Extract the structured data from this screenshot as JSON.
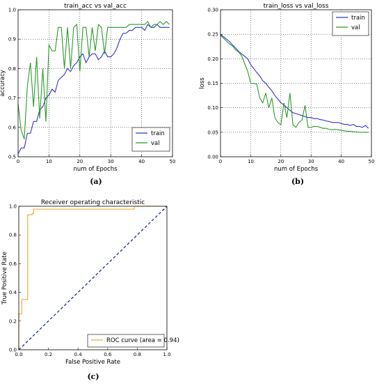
{
  "captions": {
    "a": "(a)",
    "b": "(b)",
    "c": "(c)"
  },
  "colors": {
    "train": "#3333cc",
    "val": "#2a9a2a",
    "train_loss": "#3333cc",
    "val_loss": "#2a9a2a",
    "roc": "#f5a623",
    "diag": "#1f2a8a"
  },
  "chart_data": [
    {
      "type": "line",
      "title": "train_acc vs val_acc",
      "xlabel": "num of Epochs",
      "ylabel": "accuracy",
      "xlim": [
        0,
        50
      ],
      "ylim": [
        0.5,
        1.0
      ],
      "xticks": [
        0,
        10,
        20,
        30,
        40,
        50
      ],
      "yticks": [
        0.5,
        0.6,
        0.7,
        0.8,
        0.9,
        1.0
      ],
      "grid": true,
      "legend": "bottom-right",
      "x": [
        0,
        1,
        2,
        3,
        4,
        5,
        6,
        7,
        8,
        9,
        10,
        11,
        12,
        13,
        14,
        15,
        16,
        17,
        18,
        19,
        20,
        21,
        22,
        23,
        24,
        25,
        26,
        27,
        28,
        29,
        30,
        31,
        32,
        33,
        34,
        35,
        36,
        37,
        38,
        39,
        40,
        41,
        42,
        43,
        44,
        45,
        46,
        47,
        48,
        49
      ],
      "series": [
        {
          "name": "train",
          "values": [
            0.51,
            0.53,
            0.53,
            0.58,
            0.58,
            0.62,
            0.62,
            0.66,
            0.67,
            0.7,
            0.71,
            0.73,
            0.72,
            0.76,
            0.77,
            0.78,
            0.8,
            0.79,
            0.81,
            0.82,
            0.84,
            0.85,
            0.82,
            0.84,
            0.85,
            0.85,
            0.83,
            0.84,
            0.86,
            0.84,
            0.84,
            0.85,
            0.87,
            0.9,
            0.92,
            0.92,
            0.93,
            0.93,
            0.94,
            0.94,
            0.94,
            0.93,
            0.95,
            0.94,
            0.94,
            0.95,
            0.94,
            0.94,
            0.94,
            0.94
          ]
        },
        {
          "name": "val",
          "values": [
            0.68,
            0.59,
            0.56,
            0.74,
            0.82,
            0.67,
            0.84,
            0.63,
            0.8,
            0.62,
            0.88,
            0.86,
            0.86,
            0.94,
            0.94,
            0.8,
            0.94,
            0.8,
            0.94,
            0.95,
            0.79,
            0.94,
            0.94,
            0.84,
            0.94,
            0.86,
            0.95,
            0.94,
            0.85,
            0.94,
            0.94,
            0.94,
            0.94,
            0.94,
            0.94,
            0.94,
            0.95,
            0.95,
            0.95,
            0.95,
            0.95,
            0.95,
            0.96,
            0.94,
            0.95,
            0.95,
            0.96,
            0.95,
            0.96,
            0.95
          ]
        }
      ]
    },
    {
      "type": "line",
      "title": "train_loss vs val_loss",
      "xlabel": "num of Epochs",
      "ylabel": "loss",
      "xlim": [
        0,
        50
      ],
      "ylim": [
        0.0,
        0.3
      ],
      "xticks": [
        0,
        10,
        20,
        30,
        40,
        50
      ],
      "yticks": [
        0.0,
        0.05,
        0.1,
        0.15,
        0.2,
        0.25,
        0.3
      ],
      "grid": true,
      "legend": "top-right",
      "x": [
        0,
        1,
        2,
        3,
        4,
        5,
        6,
        7,
        8,
        9,
        10,
        11,
        12,
        13,
        14,
        15,
        16,
        17,
        18,
        19,
        20,
        21,
        22,
        23,
        24,
        25,
        26,
        27,
        28,
        29,
        30,
        31,
        32,
        33,
        34,
        35,
        36,
        37,
        38,
        39,
        40,
        41,
        42,
        43,
        44,
        45,
        46,
        47,
        48,
        49
      ],
      "series": [
        {
          "name": "train",
          "values": [
            0.25,
            0.245,
            0.24,
            0.235,
            0.228,
            0.222,
            0.215,
            0.21,
            0.205,
            0.2,
            0.188,
            0.18,
            0.172,
            0.165,
            0.155,
            0.15,
            0.142,
            0.135,
            0.125,
            0.118,
            0.11,
            0.106,
            0.1,
            0.095,
            0.09,
            0.088,
            0.086,
            0.084,
            0.082,
            0.08,
            0.08,
            0.078,
            0.078,
            0.076,
            0.075,
            0.073,
            0.072,
            0.07,
            0.07,
            0.07,
            0.068,
            0.066,
            0.066,
            0.064,
            0.066,
            0.062,
            0.062,
            0.06,
            0.064,
            0.058
          ]
        },
        {
          "name": "val",
          "values": [
            0.248,
            0.242,
            0.236,
            0.23,
            0.226,
            0.218,
            0.214,
            0.206,
            0.19,
            0.175,
            0.15,
            0.15,
            0.148,
            0.12,
            0.11,
            0.13,
            0.1,
            0.12,
            0.08,
            0.07,
            0.065,
            0.11,
            0.08,
            0.13,
            0.065,
            0.06,
            0.07,
            0.075,
            0.105,
            0.06,
            0.06,
            0.062,
            0.062,
            0.06,
            0.058,
            0.058,
            0.056,
            0.055,
            0.056,
            0.055,
            0.054,
            0.053,
            0.052,
            0.052,
            0.051,
            0.051,
            0.05,
            0.05,
            0.05,
            0.05
          ]
        }
      ]
    },
    {
      "type": "line",
      "title": "Receiver operating characteristic",
      "xlabel": "False Positive Rate",
      "ylabel": "True Positive Rate",
      "xlim": [
        0.0,
        1.0
      ],
      "ylim": [
        0.0,
        1.0
      ],
      "xticks": [
        0.0,
        0.2,
        0.4,
        0.6,
        0.8,
        1.0
      ],
      "yticks": [
        0.0,
        0.2,
        0.4,
        0.6,
        0.8,
        1.0
      ],
      "grid": false,
      "legend": "bottom-right",
      "series": [
        {
          "name": "ROC curve (area = 0.94)",
          "x": [
            0.0,
            0.0,
            0.02,
            0.02,
            0.06,
            0.06,
            0.09,
            0.09,
            0.1,
            0.1,
            0.78,
            0.78,
            1.0
          ],
          "y": [
            0.0,
            0.25,
            0.25,
            0.35,
            0.35,
            0.94,
            0.94,
            0.95,
            0.95,
            0.98,
            0.98,
            1.0,
            1.0
          ]
        }
      ],
      "diagonal": {
        "x": [
          0,
          1
        ],
        "y": [
          0,
          1
        ]
      }
    }
  ]
}
